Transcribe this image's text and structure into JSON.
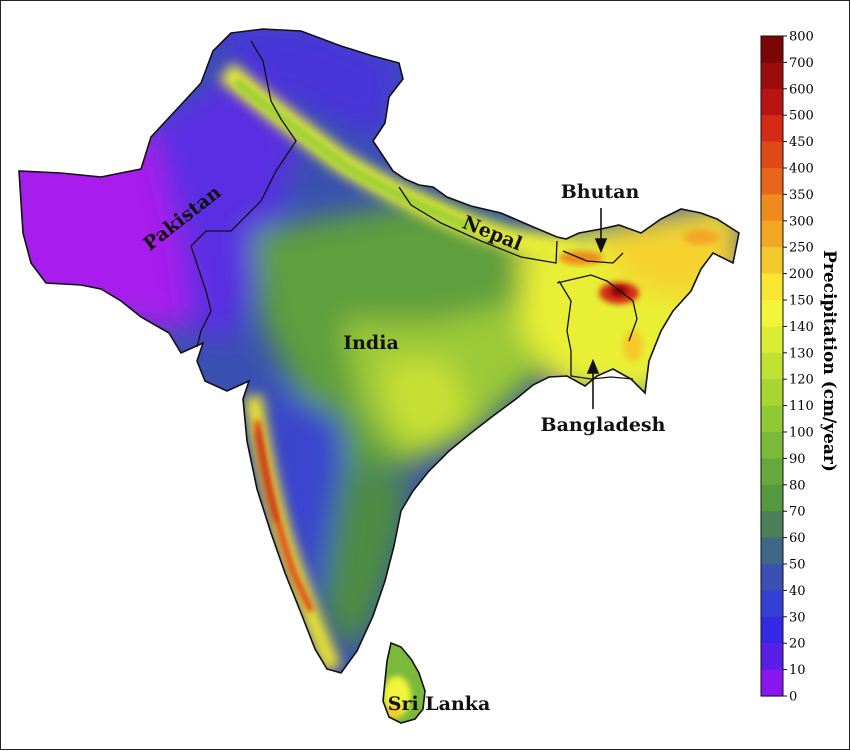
{
  "map": {
    "labels": {
      "pakistan": "Pakistan",
      "india": "India",
      "nepal": "Nepal",
      "bhutan": "Bhutan",
      "bangladesh": "Bangladesh",
      "sri_lanka": "Sri Lanka"
    }
  },
  "colorbar": {
    "title": "Precipitation (cm/year)",
    "ticks": [
      "800",
      "700",
      "600",
      "500",
      "450",
      "400",
      "350",
      "300",
      "250",
      "200",
      "150",
      "140",
      "130",
      "120",
      "110",
      "100",
      "90",
      "80",
      "70",
      "60",
      "50",
      "40",
      "30",
      "20",
      "10",
      "0"
    ],
    "colors": [
      "#7a0606",
      "#9a0b0b",
      "#b81414",
      "#d42a16",
      "#e04a17",
      "#e8661a",
      "#ef8a1e",
      "#f2a825",
      "#f5c92c",
      "#f8e632",
      "#f1f53a",
      "#dbee35",
      "#c0e233",
      "#a7d632",
      "#8fca34",
      "#7ab93a",
      "#65a93d",
      "#55993f",
      "#4a7f5a",
      "#3e6788",
      "#3a51b2",
      "#3540d4",
      "#3328e3",
      "#5a1fe6",
      "#8a16ef",
      "#c013f5"
    ]
  }
}
